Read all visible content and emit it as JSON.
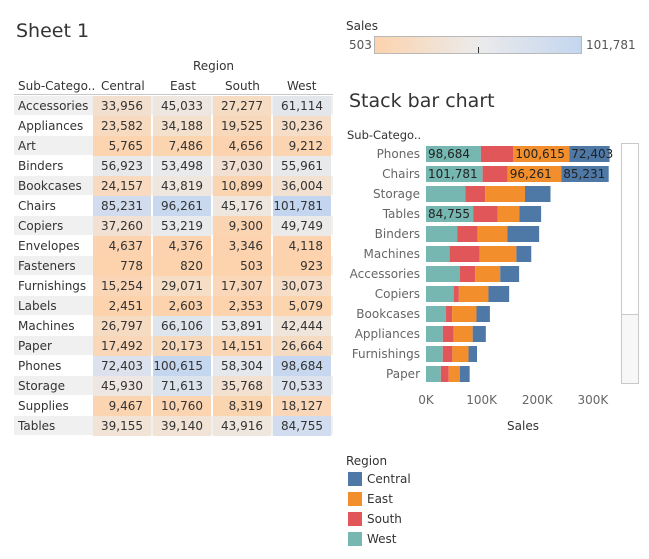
{
  "sheet1": {
    "title": "Sheet 1",
    "column_group_header": "Region",
    "row_header": "Sub-Catego..",
    "columns": [
      "Central",
      "East",
      "South",
      "West"
    ],
    "rows": [
      {
        "label": "Accessories",
        "values": [
          33956,
          45033,
          27277,
          61114
        ],
        "display": [
          "33,956",
          "45,033",
          "27,277",
          "61,114"
        ]
      },
      {
        "label": "Appliances",
        "values": [
          23582,
          34188,
          19525,
          30236
        ],
        "display": [
          "23,582",
          "34,188",
          "19,525",
          "30,236"
        ]
      },
      {
        "label": "Art",
        "values": [
          5765,
          7486,
          4656,
          9212
        ],
        "display": [
          "5,765",
          "7,486",
          "4,656",
          "9,212"
        ]
      },
      {
        "label": "Binders",
        "values": [
          56923,
          53498,
          37030,
          55961
        ],
        "display": [
          "56,923",
          "53,498",
          "37,030",
          "55,961"
        ]
      },
      {
        "label": "Bookcases",
        "values": [
          24157,
          43819,
          10899,
          36004
        ],
        "display": [
          "24,157",
          "43,819",
          "10,899",
          "36,004"
        ]
      },
      {
        "label": "Chairs",
        "values": [
          85231,
          96261,
          45176,
          101781
        ],
        "display": [
          "85,231",
          "96,261",
          "45,176",
          "101,781"
        ]
      },
      {
        "label": "Copiers",
        "values": [
          37260,
          53219,
          9300,
          49749
        ],
        "display": [
          "37,260",
          "53,219",
          "9,300",
          "49,749"
        ]
      },
      {
        "label": "Envelopes",
        "values": [
          4637,
          4376,
          3346,
          4118
        ],
        "display": [
          "4,637",
          "4,376",
          "3,346",
          "4,118"
        ]
      },
      {
        "label": "Fasteners",
        "values": [
          778,
          820,
          503,
          923
        ],
        "display": [
          "778",
          "820",
          "503",
          "923"
        ]
      },
      {
        "label": "Furnishings",
        "values": [
          15254,
          29071,
          17307,
          30073
        ],
        "display": [
          "15,254",
          "29,071",
          "17,307",
          "30,073"
        ]
      },
      {
        "label": "Labels",
        "values": [
          2451,
          2603,
          2353,
          5079
        ],
        "display": [
          "2,451",
          "2,603",
          "2,353",
          "5,079"
        ]
      },
      {
        "label": "Machines",
        "values": [
          26797,
          66106,
          53891,
          42444
        ],
        "display": [
          "26,797",
          "66,106",
          "53,891",
          "42,444"
        ]
      },
      {
        "label": "Paper",
        "values": [
          17492,
          20173,
          14151,
          26664
        ],
        "display": [
          "17,492",
          "20,173",
          "14,151",
          "26,664"
        ]
      },
      {
        "label": "Phones",
        "values": [
          72403,
          100615,
          58304,
          98684
        ],
        "display": [
          "72,403",
          "100,615",
          "58,304",
          "98,684"
        ]
      },
      {
        "label": "Storage",
        "values": [
          45930,
          71613,
          35768,
          70533
        ],
        "display": [
          "45,930",
          "71,613",
          "35,768",
          "70,533"
        ]
      },
      {
        "label": "Supplies",
        "values": [
          9467,
          10760,
          8319,
          18127
        ],
        "display": [
          "9,467",
          "10,760",
          "8,319",
          "18,127"
        ]
      },
      {
        "label": "Tables",
        "values": [
          39155,
          39140,
          43916,
          84755
        ],
        "display": [
          "39,155",
          "39,140",
          "43,916",
          "84,755"
        ]
      }
    ]
  },
  "sales_legend": {
    "title": "Sales",
    "min_label": "503",
    "max_label": "101,781",
    "min": 503,
    "max": 101781,
    "colors": {
      "low": "#fcd3ad",
      "mid": "#ebebeb",
      "high": "#c4d6ef"
    }
  },
  "chart_data": {
    "type": "bar",
    "orientation": "horizontal",
    "stacked": true,
    "title": "Stack bar chart",
    "category_header": "Sub-Catego..",
    "xlabel": "Sales",
    "ylabel": "",
    "xlim": [
      0,
      320000
    ],
    "xticks": [
      0,
      100000,
      200000,
      300000
    ],
    "xtick_labels": [
      "0K",
      "100K",
      "200K",
      "300K"
    ],
    "categories": [
      "Phones",
      "Chairs",
      "Storage",
      "Tables",
      "Binders",
      "Machines",
      "Accessories",
      "Copiers",
      "Bookcases",
      "Appliances",
      "Furnishings",
      "Paper"
    ],
    "series": [
      {
        "name": "West",
        "color": "#76b7b2",
        "values": [
          98684,
          101781,
          70533,
          84755,
          55961,
          42444,
          61114,
          49749,
          36004,
          30236,
          30073,
          26664
        ],
        "labels": [
          "98,684",
          "101,781",
          "",
          "84,755",
          "",
          "",
          "",
          "",
          "",
          "",
          "",
          ""
        ]
      },
      {
        "name": "South",
        "color": "#e15759",
        "values": [
          58304,
          45176,
          35768,
          43916,
          37030,
          53891,
          27277,
          9300,
          10899,
          19525,
          17307,
          14151
        ],
        "labels": [
          "",
          "",
          "",
          "",
          "",
          "",
          "",
          "",
          "",
          "",
          "",
          ""
        ]
      },
      {
        "name": "East",
        "color": "#f28e2b",
        "values": [
          100615,
          96261,
          71613,
          39140,
          53498,
          66106,
          45033,
          53219,
          43819,
          34188,
          29071,
          20173
        ],
        "labels": [
          "100,615",
          "96,261",
          "",
          "",
          "",
          "",
          "",
          "",
          "",
          "",
          "",
          ""
        ]
      },
      {
        "name": "Central",
        "color": "#4e79a7",
        "values": [
          72403,
          85231,
          45930,
          39155,
          56923,
          26797,
          33956,
          37260,
          24157,
          23582,
          15254,
          17492
        ],
        "labels": [
          "72,403",
          "85,231",
          "",
          "",
          "",
          "",
          "",
          "",
          "",
          "",
          "",
          ""
        ]
      }
    ],
    "legend_position": "bottom-left",
    "grid": false
  },
  "region_legend": {
    "title": "Region",
    "items": [
      {
        "label": "Central",
        "color": "#4e79a7"
      },
      {
        "label": "East",
        "color": "#f28e2b"
      },
      {
        "label": "South",
        "color": "#e15759"
      },
      {
        "label": "West",
        "color": "#76b7b2"
      }
    ]
  }
}
